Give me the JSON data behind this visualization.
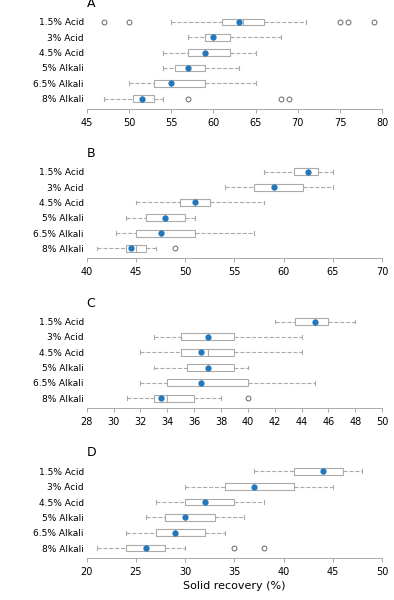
{
  "panels": [
    {
      "label": "A",
      "xlim": [
        45,
        80
      ],
      "xticks": [
        45,
        50,
        55,
        60,
        65,
        70,
        75,
        80
      ],
      "categories": [
        "1.5% Acid",
        "3% Acid",
        "4.5% Acid",
        "5% Alkali",
        "6.5% Alkali",
        "8% Alkali"
      ],
      "boxes": [
        {
          "q1": 61,
          "median": 63.5,
          "q3": 66,
          "mean": 63,
          "whisker_lo": 55,
          "whisker_hi": 71,
          "outliers": [
            47,
            50,
            75,
            76,
            79
          ]
        },
        {
          "q1": 59,
          "median": 60,
          "q3": 62,
          "mean": 60,
          "whisker_lo": 57,
          "whisker_hi": 68,
          "outliers": []
        },
        {
          "q1": 57,
          "median": 59,
          "q3": 62,
          "mean": 59,
          "whisker_lo": 54,
          "whisker_hi": 65,
          "outliers": []
        },
        {
          "q1": 55.5,
          "median": 57,
          "q3": 59,
          "mean": 57,
          "whisker_lo": 54,
          "whisker_hi": 63,
          "outliers": []
        },
        {
          "q1": 53,
          "median": 55,
          "q3": 59,
          "mean": 55,
          "whisker_lo": 50,
          "whisker_hi": 65,
          "outliers": []
        },
        {
          "q1": 50.5,
          "median": 51.5,
          "q3": 53,
          "mean": 51.5,
          "whisker_lo": 47,
          "whisker_hi": 54,
          "outliers": [
            57,
            68,
            69
          ]
        }
      ]
    },
    {
      "label": "B",
      "xlim": [
        40,
        70
      ],
      "xticks": [
        40,
        45,
        50,
        55,
        60,
        65,
        70
      ],
      "categories": [
        "1.5% Acid",
        "3% Acid",
        "4.5% Acid",
        "5% Alkali",
        "6.5% Alkali",
        "8% Alkali"
      ],
      "boxes": [
        {
          "q1": 61,
          "median": 62.5,
          "q3": 63.5,
          "mean": 62.5,
          "whisker_lo": 58,
          "whisker_hi": 65,
          "outliers": []
        },
        {
          "q1": 57,
          "median": 59,
          "q3": 62,
          "mean": 59,
          "whisker_lo": 54,
          "whisker_hi": 65,
          "outliers": []
        },
        {
          "q1": 49.5,
          "median": 51,
          "q3": 52.5,
          "mean": 51,
          "whisker_lo": 45,
          "whisker_hi": 58,
          "outliers": []
        },
        {
          "q1": 46,
          "median": 48,
          "q3": 50,
          "mean": 48,
          "whisker_lo": 44,
          "whisker_hi": 51,
          "outliers": []
        },
        {
          "q1": 45,
          "median": 47.5,
          "q3": 51,
          "mean": 47.5,
          "whisker_lo": 43,
          "whisker_hi": 57,
          "outliers": []
        },
        {
          "q1": 44,
          "median": 45,
          "q3": 46,
          "mean": 44.5,
          "whisker_lo": 41,
          "whisker_hi": 47,
          "outliers": [
            49
          ]
        }
      ]
    },
    {
      "label": "C",
      "xlim": [
        28,
        50
      ],
      "xticks": [
        28,
        30,
        32,
        34,
        36,
        38,
        40,
        42,
        44,
        46,
        48,
        50
      ],
      "categories": [
        "1.5% Acid",
        "3% Acid",
        "4.5% Acid",
        "5% Alkali",
        "6.5% Alkali",
        "8% Alkali"
      ],
      "boxes": [
        {
          "q1": 43.5,
          "median": 45,
          "q3": 46,
          "mean": 45,
          "whisker_lo": 42,
          "whisker_hi": 48,
          "outliers": []
        },
        {
          "q1": 35,
          "median": 37,
          "q3": 39,
          "mean": 37,
          "whisker_lo": 33,
          "whisker_hi": 44,
          "outliers": []
        },
        {
          "q1": 35,
          "median": 37,
          "q3": 39,
          "mean": 36.5,
          "whisker_lo": 32,
          "whisker_hi": 44,
          "outliers": []
        },
        {
          "q1": 35.5,
          "median": 37,
          "q3": 39,
          "mean": 37,
          "whisker_lo": 33,
          "whisker_hi": 40,
          "outliers": []
        },
        {
          "q1": 34,
          "median": 36.5,
          "q3": 40,
          "mean": 36.5,
          "whisker_lo": 32,
          "whisker_hi": 45,
          "outliers": []
        },
        {
          "q1": 33,
          "median": 34,
          "q3": 36,
          "mean": 33.5,
          "whisker_lo": 31,
          "whisker_hi": 38,
          "outliers": [
            40
          ]
        }
      ]
    },
    {
      "label": "D",
      "xlim": [
        20,
        50
      ],
      "xticks": [
        20,
        25,
        30,
        35,
        40,
        45,
        50
      ],
      "categories": [
        "1.5% Acid",
        "3% Acid",
        "4.5% Acid",
        "5% Alkali",
        "6.5% Alkali",
        "8% Alkali"
      ],
      "boxes": [
        {
          "q1": 41,
          "median": 44,
          "q3": 46,
          "mean": 44,
          "whisker_lo": 37,
          "whisker_hi": 48,
          "outliers": []
        },
        {
          "q1": 34,
          "median": 37,
          "q3": 41,
          "mean": 37,
          "whisker_lo": 30,
          "whisker_hi": 45,
          "outliers": []
        },
        {
          "q1": 30,
          "median": 32,
          "q3": 35,
          "mean": 32,
          "whisker_lo": 27,
          "whisker_hi": 38,
          "outliers": []
        },
        {
          "q1": 28,
          "median": 30,
          "q3": 33,
          "mean": 30,
          "whisker_lo": 26,
          "whisker_hi": 36,
          "outliers": []
        },
        {
          "q1": 27,
          "median": 29,
          "q3": 32,
          "mean": 29,
          "whisker_lo": 24,
          "whisker_hi": 34,
          "outliers": []
        },
        {
          "q1": 24,
          "median": 26,
          "q3": 28,
          "mean": 26,
          "whisker_lo": 21,
          "whisker_hi": 30,
          "outliers": [
            35,
            38
          ]
        }
      ]
    }
  ],
  "xlabel": "Solid recovery (%)",
  "box_facecolor": "white",
  "box_edgecolor": "#aaaaaa",
  "whisker_color": "#aaaaaa",
  "median_color": "#aaaaaa",
  "mean_color": "#2277bb",
  "outlier_facecolor": "white",
  "outlier_edgecolor": "#666666"
}
